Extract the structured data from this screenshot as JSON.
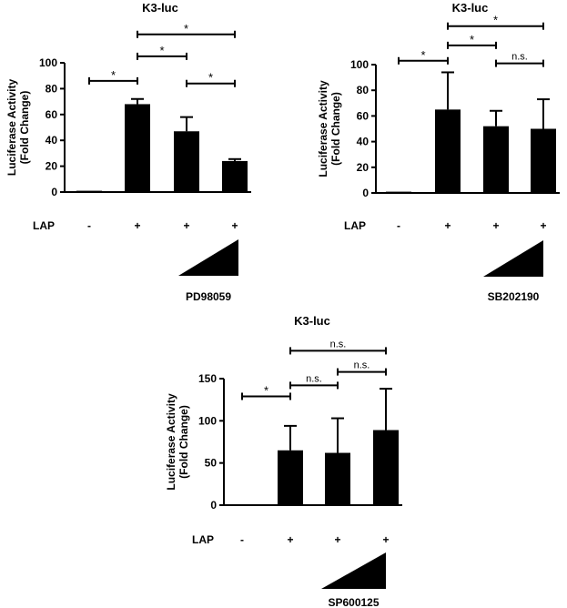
{
  "chart_data": [
    {
      "type": "bar",
      "title": "K3-luc",
      "ylabel": "Luciferase Activity (Fold Change)",
      "ylabel_lines": [
        "Luciferase Activity",
        "(Fold Change)"
      ],
      "ylim": [
        0,
        100
      ],
      "yticks": [
        0,
        20,
        40,
        60,
        80,
        100
      ],
      "row_label": "LAP",
      "lap": [
        "-",
        "+",
        "+",
        "+"
      ],
      "values": [
        1,
        68,
        47,
        24
      ],
      "errors": [
        0.5,
        4,
        11,
        1.5
      ],
      "treatment": "PD98059",
      "gradient_from_bar": 2,
      "significance": [
        {
          "from": 0,
          "to": 1,
          "label": "*",
          "y": 86
        },
        {
          "from": 1,
          "to": 2,
          "label": "*",
          "y": 105
        },
        {
          "from": 2,
          "to": 3,
          "label": "*",
          "y": 84
        },
        {
          "from": 1,
          "to": 3,
          "label": "*",
          "y": 122
        }
      ]
    },
    {
      "type": "bar",
      "title": "K3-luc",
      "ylabel": "Luciferase Activity (Fold Change)",
      "ylabel_lines": [
        "Luciferase Activity",
        "(Fold Change)"
      ],
      "ylim": [
        0,
        100
      ],
      "yticks": [
        0,
        20,
        40,
        60,
        80,
        100
      ],
      "row_label": "LAP",
      "lap": [
        "-",
        "+",
        "+",
        "+"
      ],
      "values": [
        1,
        65,
        52,
        50
      ],
      "errors": [
        0.5,
        29,
        12,
        23
      ],
      "treatment": "SB202190",
      "gradient_from_bar": 2,
      "significance": [
        {
          "from": 0,
          "to": 1,
          "label": "*",
          "y": 103
        },
        {
          "from": 1,
          "to": 2,
          "label": "*",
          "y": 115
        },
        {
          "from": 2,
          "to": 3,
          "label": "n.s.",
          "y": 101
        },
        {
          "from": 1,
          "to": 3,
          "label": "*",
          "y": 130
        }
      ]
    },
    {
      "type": "bar",
      "title": "K3-luc",
      "ylabel": "Luciferase Activity (Fold Change)",
      "ylabel_lines": [
        "Luciferase Activity",
        "(Fold Change)"
      ],
      "ylim": [
        0,
        150
      ],
      "yticks": [
        0,
        50,
        100,
        150
      ],
      "row_label": "LAP",
      "lap": [
        "-",
        "+",
        "+",
        "+"
      ],
      "values": [
        1,
        65,
        62,
        89
      ],
      "errors": [
        0.5,
        29,
        41,
        49
      ],
      "treatment": "SP600125",
      "gradient_from_bar": 2,
      "significance": [
        {
          "from": 0,
          "to": 1,
          "label": "*",
          "y": 129
        },
        {
          "from": 1,
          "to": 2,
          "label": "n.s.",
          "y": 142
        },
        {
          "from": 2,
          "to": 3,
          "label": "n.s.",
          "y": 158
        },
        {
          "from": 1,
          "to": 3,
          "label": "n.s.",
          "y": 183
        }
      ]
    }
  ]
}
